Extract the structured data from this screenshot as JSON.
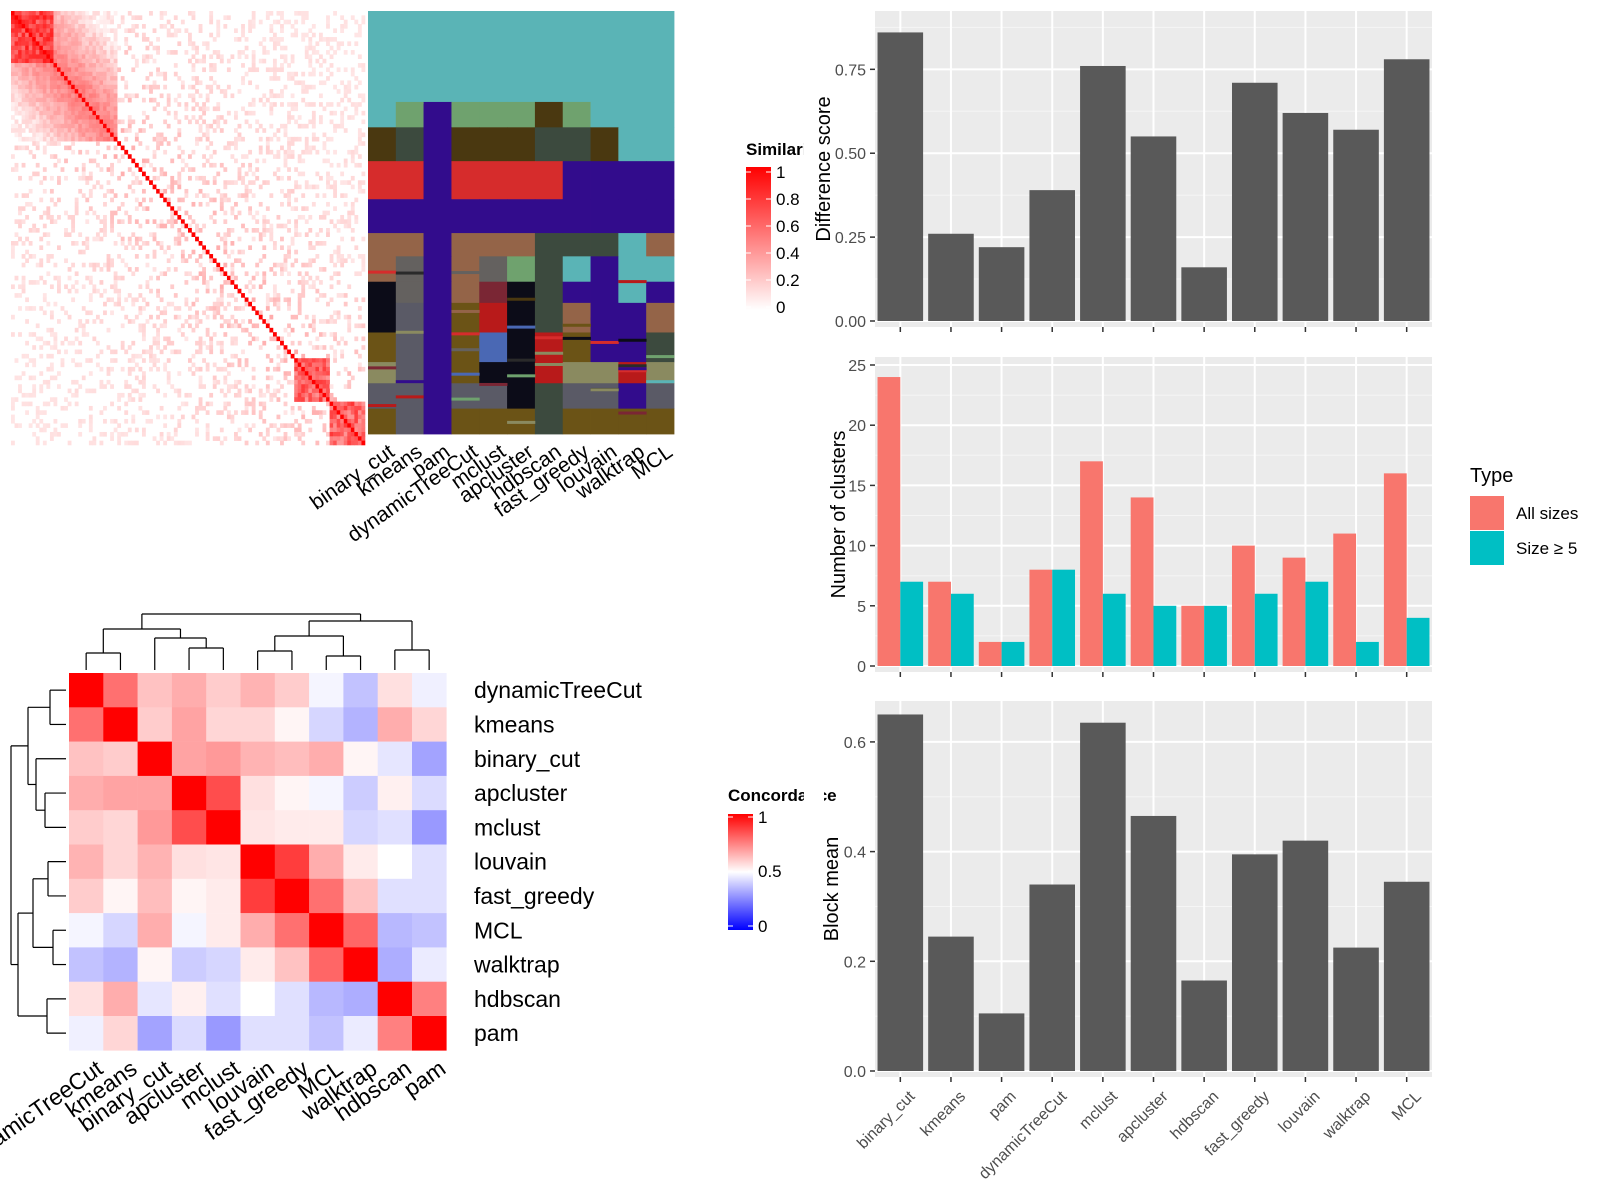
{
  "methods": [
    "binary_cut",
    "kmeans",
    "pam",
    "dynamicTreeCut",
    "mclust",
    "apcluster",
    "hdbscan",
    "fast_greedy",
    "louvain",
    "walktrap",
    "MCL"
  ],
  "similarity_heatmap": {
    "legend_title": "Similarity",
    "legend_ticks": [
      "1",
      "0.8",
      "0.6",
      "0.4",
      "0.2",
      "0"
    ],
    "matrix_size": 100,
    "low_color": "#ffffff",
    "high_color": "#ff0000"
  },
  "partition_heatmap": {
    "columns": [
      "binary_cut",
      "kmeans",
      "pam",
      "dynamicTreeCut",
      "mclust",
      "apcluster",
      "hdbscan",
      "fast_greedy",
      "louvain",
      "walktrap",
      "MCL"
    ],
    "palette": [
      "#5ab4b6",
      "#6fa26e",
      "#3c4a3e",
      "#4a3810",
      "#d62c2c",
      "#320c8c",
      "#946448",
      "#64615f",
      "#6b5316",
      "#0c0c18",
      "#8a8a60",
      "#5a5a66",
      "#b81a1a",
      "#7a2634",
      "#4a68b4",
      "#2a2a2a"
    ]
  },
  "concordance_heatmap": {
    "legend_title": "Concordance",
    "legend_ticks": [
      "1",
      "0.5",
      "0"
    ],
    "order": [
      "dynamicTreeCut",
      "kmeans",
      "binary_cut",
      "apcluster",
      "mclust",
      "louvain",
      "fast_greedy",
      "MCL",
      "walktrap",
      "hdbscan",
      "pam"
    ],
    "values": [
      [
        1.0,
        0.78,
        0.62,
        0.66,
        0.6,
        0.65,
        0.6,
        0.48,
        0.38,
        0.56,
        0.47
      ],
      [
        0.78,
        1.0,
        0.6,
        0.68,
        0.58,
        0.58,
        0.52,
        0.42,
        0.35,
        0.66,
        0.58
      ],
      [
        0.62,
        0.6,
        1.0,
        0.68,
        0.7,
        0.65,
        0.63,
        0.66,
        0.52,
        0.45,
        0.32
      ],
      [
        0.66,
        0.68,
        0.68,
        1.0,
        0.85,
        0.56,
        0.52,
        0.48,
        0.4,
        0.53,
        0.43
      ],
      [
        0.6,
        0.58,
        0.7,
        0.85,
        1.0,
        0.55,
        0.54,
        0.54,
        0.42,
        0.44,
        0.3
      ],
      [
        0.65,
        0.58,
        0.65,
        0.56,
        0.55,
        1.0,
        0.88,
        0.66,
        0.54,
        0.5,
        0.44
      ],
      [
        0.6,
        0.52,
        0.63,
        0.52,
        0.54,
        0.88,
        1.0,
        0.78,
        0.62,
        0.44,
        0.44
      ],
      [
        0.48,
        0.42,
        0.66,
        0.48,
        0.54,
        0.66,
        0.78,
        1.0,
        0.8,
        0.36,
        0.38
      ],
      [
        0.38,
        0.35,
        0.52,
        0.4,
        0.42,
        0.54,
        0.62,
        0.8,
        1.0,
        0.34,
        0.46
      ],
      [
        0.56,
        0.66,
        0.45,
        0.53,
        0.44,
        0.5,
        0.44,
        0.36,
        0.34,
        1.0,
        0.75
      ],
      [
        0.47,
        0.58,
        0.32,
        0.43,
        0.3,
        0.44,
        0.44,
        0.38,
        0.46,
        0.75,
        1.0
      ]
    ]
  },
  "chart_data": [
    {
      "type": "bar",
      "categories": [
        "binary_cut",
        "kmeans",
        "pam",
        "dynamicTreeCut",
        "mclust",
        "apcluster",
        "hdbscan",
        "fast_greedy",
        "louvain",
        "walktrap",
        "MCL"
      ],
      "values": [
        0.86,
        0.26,
        0.22,
        0.39,
        0.76,
        0.55,
        0.16,
        0.71,
        0.62,
        0.57,
        0.78
      ],
      "ylabel": "Difference score",
      "ylim": [
        0,
        0.9
      ],
      "yticks": [
        0,
        0.25,
        0.5,
        0.75
      ],
      "ytick_labels": [
        "0.00",
        "0.25",
        "0.50",
        "0.75"
      ],
      "bar_color": "#595959"
    },
    {
      "type": "bar",
      "categories": [
        "binary_cut",
        "kmeans",
        "pam",
        "dynamicTreeCut",
        "mclust",
        "apcluster",
        "hdbscan",
        "fast_greedy",
        "louvain",
        "walktrap",
        "MCL"
      ],
      "series": [
        {
          "name": "All sizes",
          "values": [
            24,
            7,
            2,
            8,
            17,
            14,
            5,
            10,
            9,
            11,
            16
          ],
          "color": "#f8766d"
        },
        {
          "name": "Size ≥ 5",
          "values": [
            7,
            6,
            2,
            8,
            6,
            5,
            5,
            6,
            7,
            2,
            4
          ],
          "color": "#00bfc4"
        }
      ],
      "ylabel": "Number of clusters",
      "ylim": [
        0,
        25
      ],
      "yticks": [
        0,
        5,
        10,
        15,
        20,
        25
      ],
      "legend_title": "Type",
      "legend_position": "right"
    },
    {
      "type": "bar",
      "categories": [
        "binary_cut",
        "kmeans",
        "pam",
        "dynamicTreeCut",
        "mclust",
        "apcluster",
        "hdbscan",
        "fast_greedy",
        "louvain",
        "walktrap",
        "MCL"
      ],
      "values": [
        0.65,
        0.245,
        0.105,
        0.34,
        0.635,
        0.465,
        0.165,
        0.395,
        0.42,
        0.225,
        0.345
      ],
      "ylabel": "Block mean",
      "ylim": [
        0,
        0.66
      ],
      "yticks": [
        0,
        0.2,
        0.4,
        0.6
      ],
      "ytick_labels": [
        "0.0",
        "0.2",
        "0.4",
        "0.6"
      ],
      "bar_color": "#595959"
    }
  ]
}
